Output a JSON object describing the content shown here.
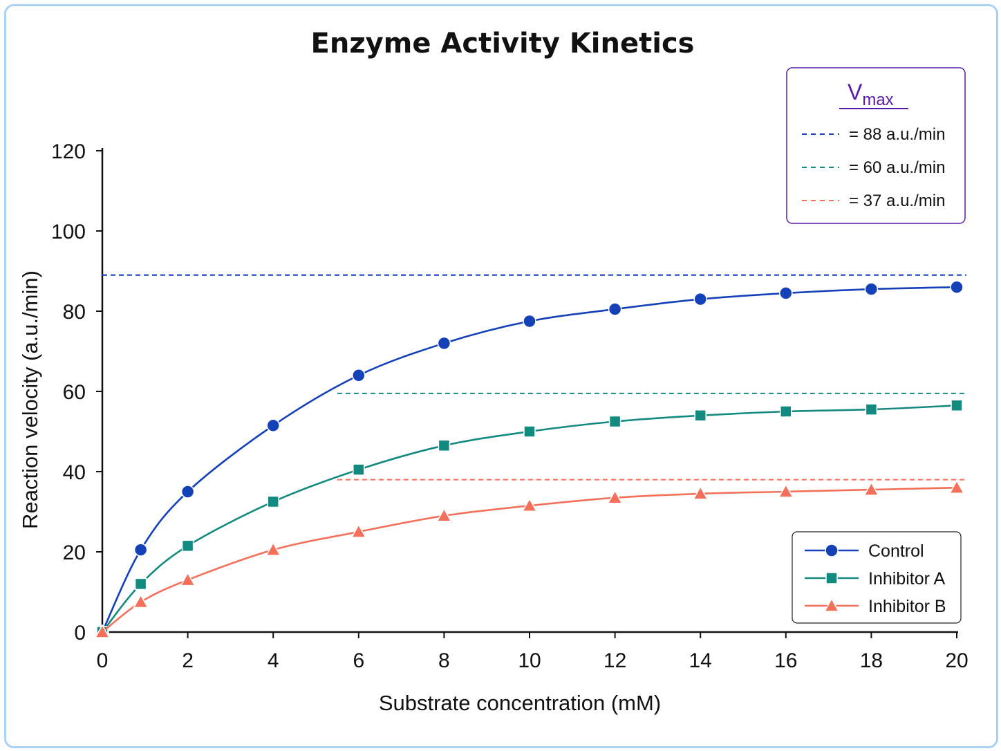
{
  "chart_data": {
    "type": "line",
    "title": "Enzyme Activity Kinetics",
    "xlabel": "Substrate concentration (mM)",
    "ylabel": "Reaction velocity (a.u./min)",
    "xlim": [
      0,
      20
    ],
    "ylim": [
      0,
      120
    ],
    "x_ticks": [
      "0",
      "2",
      "4",
      "6",
      "8",
      "10",
      "12",
      "14",
      "16",
      "18",
      "20"
    ],
    "y_ticks": [
      "0",
      "20",
      "40",
      "60",
      "80",
      "100",
      "120"
    ],
    "grid": false,
    "legend_position": "bottom-right",
    "series": [
      {
        "name": "Control",
        "color": "#1440b8",
        "marker": "circle",
        "x": [
          0,
          0.9,
          2,
          4,
          6,
          8,
          10,
          12,
          14,
          16,
          18,
          20
        ],
        "y": [
          0,
          20.5,
          35,
          51.5,
          64,
          72,
          77.5,
          80.5,
          83,
          84.5,
          85.5,
          86
        ]
      },
      {
        "name": "Inhibitor A",
        "color": "#138a80",
        "marker": "square",
        "x": [
          0,
          0.9,
          2,
          4,
          6,
          8,
          10,
          12,
          14,
          16,
          18,
          20
        ],
        "y": [
          0,
          12,
          21.5,
          32.5,
          40.5,
          46.5,
          50,
          52.5,
          54,
          55,
          55.5,
          56.5
        ]
      },
      {
        "name": "Inhibitor B",
        "color": "#f4705a",
        "marker": "triangle",
        "x": [
          0,
          0.9,
          2,
          4,
          6,
          8,
          10,
          12,
          14,
          16,
          18,
          20
        ],
        "y": [
          0,
          7.5,
          13,
          20.5,
          25,
          29,
          31.5,
          33.5,
          34.5,
          35,
          35.5,
          36
        ]
      }
    ],
    "reference_lines": [
      {
        "y": 89,
        "x_start": 0,
        "color": "#1440b8",
        "style": "dashed"
      },
      {
        "y": 59.5,
        "x_start": 5.5,
        "color": "#138a80",
        "style": "dashed"
      },
      {
        "y": 38,
        "x_start": 5.5,
        "color": "#f4705a",
        "style": "dashed"
      }
    ],
    "vmax_box": {
      "title_main": "V",
      "title_sub": "max",
      "border_color": "#5b1aa8",
      "entries": [
        {
          "label": "= 88 a.u./min",
          "color": "#1440b8"
        },
        {
          "label": "= 60 a.u./min",
          "color": "#138a80"
        },
        {
          "label": "= 37 a.u./min",
          "color": "#f4705a"
        }
      ]
    }
  }
}
